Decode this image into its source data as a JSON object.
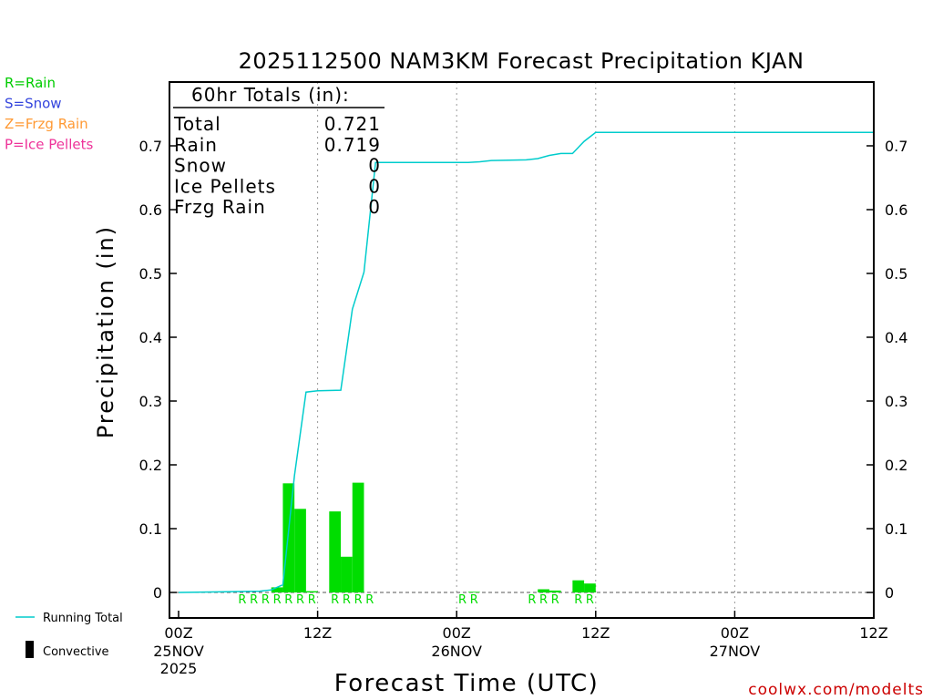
{
  "chart_data": {
    "type": "bar",
    "title": "2025112500 NAM3KM Forecast Precipitation KJAN",
    "xlabel": "Forecast Time (UTC)",
    "ylabel": "Precipitation (in)",
    "ylim": [
      -0.04,
      0.8
    ],
    "xlim_hours": [
      0,
      60
    ],
    "yticks": [
      0,
      0.1,
      0.2,
      0.3,
      0.4,
      0.5,
      0.6,
      0.7
    ],
    "ytick_labels": [
      "0",
      "0.1",
      "0.2",
      "0.3",
      "0.4",
      "0.5",
      "0.6",
      "0.7"
    ],
    "xticks": [
      {
        "hour": 0,
        "label": "00Z",
        "date": "25NOV",
        "year": "2025"
      },
      {
        "hour": 12,
        "label": "12Z",
        "date": "",
        "year": ""
      },
      {
        "hour": 24,
        "label": "00Z",
        "date": "26NOV",
        "year": ""
      },
      {
        "hour": 36,
        "label": "12Z",
        "date": "",
        "year": ""
      },
      {
        "hour": 48,
        "label": "00Z",
        "date": "27NOV",
        "year": ""
      },
      {
        "hour": 60,
        "label": "12Z",
        "date": "",
        "year": ""
      }
    ],
    "vertical_gridlines_hours": [
      12,
      24,
      36,
      48
    ],
    "totals": {
      "header": "60hr Totals (in):",
      "rows": [
        {
          "label": "Total",
          "value": "0.721"
        },
        {
          "label": "Rain",
          "value": "0.719"
        },
        {
          "label": "Snow",
          "value": "0"
        },
        {
          "label": "Ice Pellets",
          "value": "0"
        },
        {
          "label": "Frzg Rain",
          "value": "0"
        }
      ]
    },
    "ptype_legend": [
      {
        "text": "R=Rain",
        "color": "#00cc00"
      },
      {
        "text": "S=Snow",
        "color": "#3344dd"
      },
      {
        "text": "Z=Frzg Rain",
        "color": "#ff9933"
      },
      {
        "text": "P=Ice Pellets",
        "color": "#ee3399"
      }
    ],
    "series_legend": {
      "running_total": "Running Total",
      "convective": "Convective"
    },
    "colors": {
      "rain": "#00dd00",
      "running_total": "#00cccc",
      "axis": "#000000",
      "credit": "#cc0000"
    },
    "hourly_bars": [
      {
        "hour": 9,
        "value": 0.008
      },
      {
        "hour": 10,
        "value": 0.171
      },
      {
        "hour": 11,
        "value": 0.131
      },
      {
        "hour": 12,
        "value": 0.002
      },
      {
        "hour": 14,
        "value": 0.127
      },
      {
        "hour": 15,
        "value": 0.056
      },
      {
        "hour": 16,
        "value": 0.172
      },
      {
        "hour": 26,
        "value": 0.001
      },
      {
        "hour": 32,
        "value": 0.005
      },
      {
        "hour": 33,
        "value": 0.003
      },
      {
        "hour": 35,
        "value": 0.019
      },
      {
        "hour": 36,
        "value": 0.014
      }
    ],
    "running_total": [
      {
        "hour": 0,
        "value": 0.0
      },
      {
        "hour": 4,
        "value": 0.001
      },
      {
        "hour": 7,
        "value": 0.002
      },
      {
        "hour": 8,
        "value": 0.004
      },
      {
        "hour": 9,
        "value": 0.012
      },
      {
        "hour": 10,
        "value": 0.183
      },
      {
        "hour": 11,
        "value": 0.314
      },
      {
        "hour": 12,
        "value": 0.316
      },
      {
        "hour": 14,
        "value": 0.317
      },
      {
        "hour": 15,
        "value": 0.444
      },
      {
        "hour": 16,
        "value": 0.502
      },
      {
        "hour": 17,
        "value": 0.674
      },
      {
        "hour": 25,
        "value": 0.674
      },
      {
        "hour": 26,
        "value": 0.675
      },
      {
        "hour": 27,
        "value": 0.677
      },
      {
        "hour": 30,
        "value": 0.678
      },
      {
        "hour": 31,
        "value": 0.68
      },
      {
        "hour": 32,
        "value": 0.685
      },
      {
        "hour": 33,
        "value": 0.688
      },
      {
        "hour": 34,
        "value": 0.688
      },
      {
        "hour": 35,
        "value": 0.707
      },
      {
        "hour": 36,
        "value": 0.721
      },
      {
        "hour": 60,
        "value": 0.721
      }
    ],
    "ptype_markers": [
      {
        "hour": 6,
        "type": "R"
      },
      {
        "hour": 7,
        "type": "R"
      },
      {
        "hour": 8,
        "type": "R"
      },
      {
        "hour": 9,
        "type": "R"
      },
      {
        "hour": 10,
        "type": "R"
      },
      {
        "hour": 11,
        "type": "R"
      },
      {
        "hour": 12,
        "type": "R"
      },
      {
        "hour": 14,
        "type": "R"
      },
      {
        "hour": 15,
        "type": "R"
      },
      {
        "hour": 16,
        "type": "R"
      },
      {
        "hour": 17,
        "type": "R"
      },
      {
        "hour": 25,
        "type": "R"
      },
      {
        "hour": 26,
        "type": "R"
      },
      {
        "hour": 31,
        "type": "R"
      },
      {
        "hour": 32,
        "type": "R"
      },
      {
        "hour": 33,
        "type": "R"
      },
      {
        "hour": 35,
        "type": "R"
      },
      {
        "hour": 36,
        "type": "R"
      }
    ]
  },
  "credit": "coolwx.com/modelts"
}
